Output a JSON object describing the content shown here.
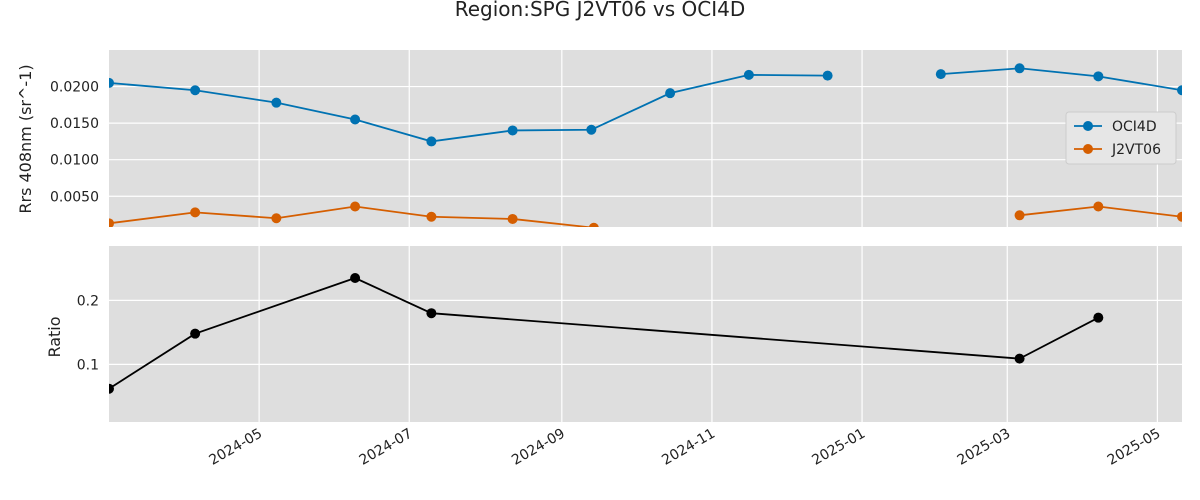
{
  "chart_data": [
    {
      "type": "line",
      "title": "Region:SPG J2VT06 vs OCI4D",
      "ylabel": "Rrs 408nm (sr^-1)",
      "ylim": [
        0.0008,
        0.025
      ],
      "xlim": [
        "2024-03-01",
        "2025-05-11"
      ],
      "grid": true,
      "legend_position": "right",
      "yticks": [
        {
          "value": 0.005,
          "label": "0.0050"
        },
        {
          "value": 0.01,
          "label": "0.0100"
        },
        {
          "value": 0.015,
          "label": "0.0150"
        },
        {
          "value": 0.02,
          "label": "0.0200"
        }
      ],
      "series": [
        {
          "name": "OCI4D",
          "color": "#0072B2",
          "points": [
            {
              "x": "2024-03-01",
              "y": 0.0205
            },
            {
              "x": "2024-04-05",
              "y": 0.0195
            },
            {
              "x": "2024-05-08",
              "y": 0.0178
            },
            {
              "x": "2024-06-09",
              "y": 0.0155
            },
            {
              "x": "2024-07-10",
              "y": 0.0125
            },
            {
              "x": "2024-08-12",
              "y": 0.014
            },
            {
              "x": "2024-09-13",
              "y": 0.0141
            },
            {
              "x": "2024-10-15",
              "y": 0.0191
            },
            {
              "x": "2024-11-16",
              "y": 0.0216
            },
            {
              "x": "2024-12-18",
              "y": 0.0215
            },
            {
              "x": null,
              "y": null
            },
            {
              "x": "2025-02-02",
              "y": 0.0217
            },
            {
              "x": "2025-03-06",
              "y": 0.0225
            },
            {
              "x": "2025-04-07",
              "y": 0.0214
            },
            {
              "x": "2025-05-11",
              "y": 0.0195
            }
          ]
        },
        {
          "name": "J2VT06",
          "color": "#D55E00",
          "points": [
            {
              "x": "2024-03-01",
              "y": 0.0013
            },
            {
              "x": "2024-04-05",
              "y": 0.0028
            },
            {
              "x": "2024-05-08",
              "y": 0.002
            },
            {
              "x": "2024-06-09",
              "y": 0.0036
            },
            {
              "x": "2024-07-10",
              "y": 0.0022
            },
            {
              "x": "2024-08-12",
              "y": 0.0019
            },
            {
              "x": "2024-09-14",
              "y": 0.0007
            },
            {
              "x": null,
              "y": null
            },
            {
              "x": "2025-03-06",
              "y": 0.0024
            },
            {
              "x": "2025-04-07",
              "y": 0.0036
            },
            {
              "x": "2025-05-11",
              "y": 0.0022
            }
          ]
        }
      ]
    },
    {
      "type": "line",
      "ylabel": "Ratio",
      "ylim": [
        0.01,
        0.285
      ],
      "xlim": [
        "2024-03-01",
        "2025-05-11"
      ],
      "grid": true,
      "yticks": [
        {
          "value": 0.1,
          "label": "0.1"
        },
        {
          "value": 0.2,
          "label": "0.2"
        }
      ],
      "xticks": [
        {
          "value": "2024-05-01",
          "label": "2024-05"
        },
        {
          "value": "2024-07-01",
          "label": "2024-07"
        },
        {
          "value": "2024-09-01",
          "label": "2024-09"
        },
        {
          "value": "2024-11-01",
          "label": "2024-11"
        },
        {
          "value": "2025-01-01",
          "label": "2025-01"
        },
        {
          "value": "2025-03-01",
          "label": "2025-03"
        },
        {
          "value": "2025-05-01",
          "label": "2025-05"
        }
      ],
      "series": [
        {
          "color": "#000000",
          "points": [
            {
              "x": "2024-03-01",
              "y": 0.062
            },
            {
              "x": "2024-04-05",
              "y": 0.148
            },
            {
              "x": "2024-06-09",
              "y": 0.235
            },
            {
              "x": "2024-07-10",
              "y": 0.18
            },
            {
              "x": "2025-03-06",
              "y": 0.109
            },
            {
              "x": "2025-04-07",
              "y": 0.173
            }
          ]
        }
      ]
    }
  ]
}
